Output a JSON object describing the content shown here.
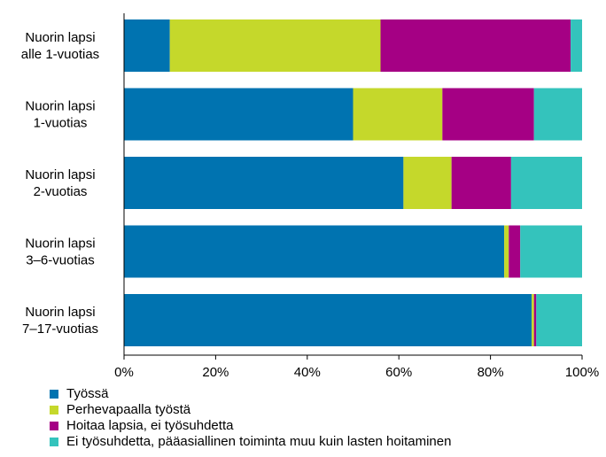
{
  "chart_data": {
    "type": "bar",
    "orientation": "horizontal",
    "stacked": "percent",
    "categories": [
      [
        "Nuorin lapsi",
        "alle 1-vuotias"
      ],
      [
        "Nuorin lapsi",
        "1-vuotias"
      ],
      [
        "Nuorin lapsi",
        "2-vuotias"
      ],
      [
        "Nuorin lapsi",
        "3–6-vuotias"
      ],
      [
        "Nuorin lapsi",
        "7–17-vuotias"
      ]
    ],
    "series": [
      {
        "name": "Työssä",
        "color": "#0073b0",
        "values": [
          10,
          50,
          61,
          83,
          89
        ]
      },
      {
        "name": "Perhevapaalla työstä",
        "color": "#c5d82b",
        "values": [
          46,
          19.5,
          10.5,
          1,
          0.5
        ]
      },
      {
        "name": "Hoitaa lapsia, ei työsuhdetta",
        "color": "#a50084",
        "values": [
          41.5,
          20,
          13,
          2.5,
          0.5
        ]
      },
      {
        "name": "Ei työsuhdetta, pääasiallinen toiminta muu kuin lasten hoitaminen",
        "color": "#34c3bc",
        "values": [
          2.5,
          10.5,
          15.5,
          13.5,
          10
        ]
      }
    ],
    "xlim": [
      0,
      100
    ],
    "xticks": [
      "0%",
      "20%",
      "40%",
      "60%",
      "80%",
      "100%"
    ],
    "grid": false,
    "legend_position": "bottom"
  }
}
